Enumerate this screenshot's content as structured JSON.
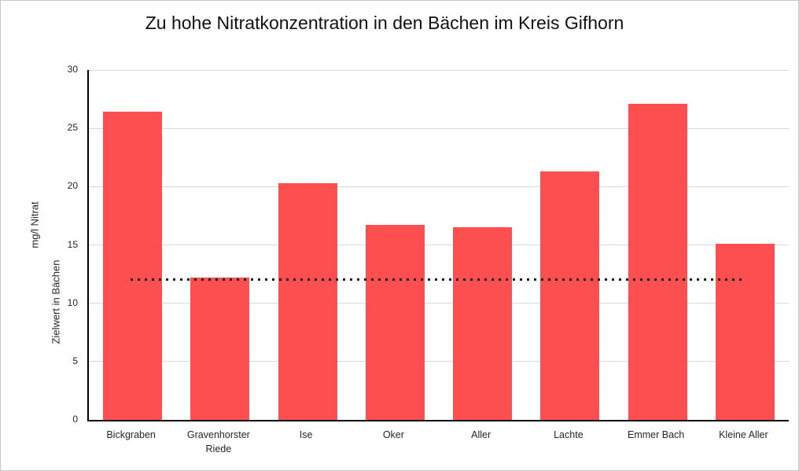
{
  "window": {
    "background_color": "#ffffff",
    "border_color": "#c8c8c8"
  },
  "chart_data": {
    "type": "bar",
    "title": "Zu hohe Nitratkonzentration in den Bächen im Kreis Gifhorn",
    "categories": [
      "Bickgraben",
      "Gravenhorster Riede",
      "Ise",
      "Oker",
      "Aller",
      "Lachte",
      "Emmer Bach",
      "Kleine Aller"
    ],
    "series": [
      {
        "name": "Nitratkonzentration",
        "type": "bar",
        "color": "#fd4f4f",
        "values": [
          26.4,
          12.2,
          20.3,
          16.7,
          16.5,
          21.3,
          27.1,
          15.1
        ]
      },
      {
        "name": "Zielwert",
        "type": "dotted_line",
        "color": "#1a1a1a",
        "value": 12
      }
    ],
    "xlabel": "",
    "ylabel_primary": "mg/l Nitrat",
    "ylabel_secondary": "Zielwert in Bächen",
    "ylim": [
      0,
      30
    ],
    "yticks": [
      0,
      5,
      10,
      15,
      20,
      25,
      30
    ],
    "grid": true,
    "gridline_color": "#d9d9d9",
    "axis_color": "#000000",
    "legend_position": "none"
  }
}
